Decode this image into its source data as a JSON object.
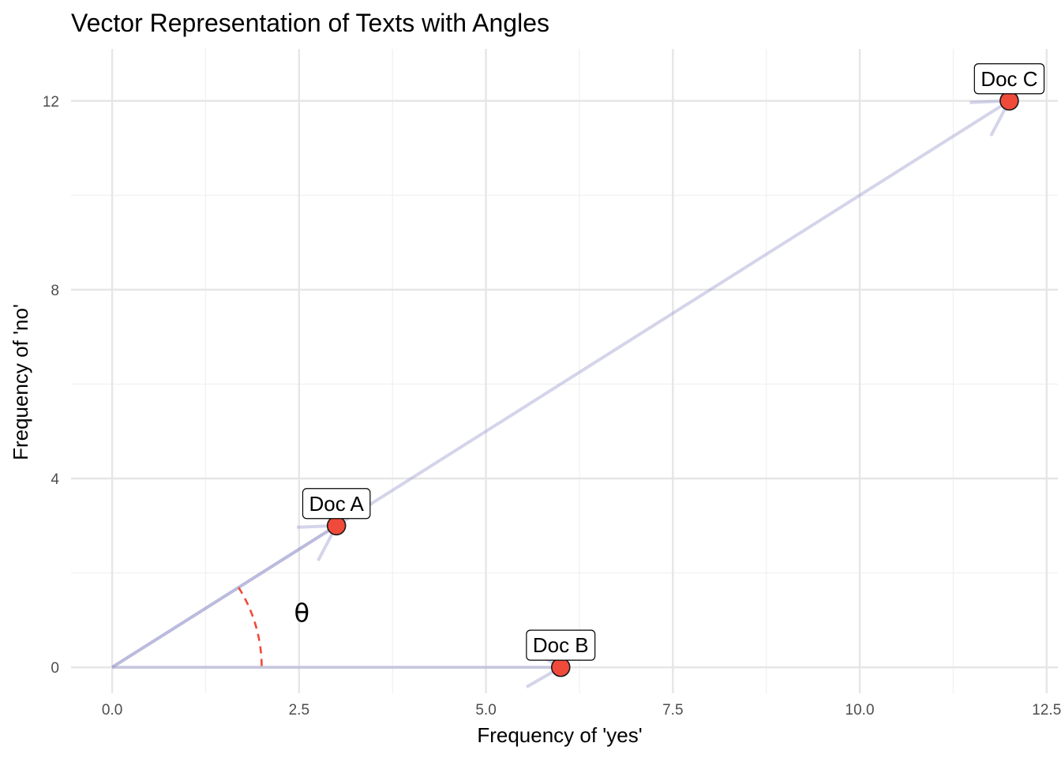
{
  "chart_data": {
    "type": "scatter",
    "title": "Vector Representation of Texts with Angles",
    "xlabel": "Frequency of 'yes'",
    "ylabel": "Frequency of 'no'",
    "xlim": [
      -0.55,
      12.65
    ],
    "ylim": [
      -0.55,
      13.1
    ],
    "x_ticks": [
      0,
      2.5,
      5,
      7.5,
      10,
      12.5
    ],
    "x_tick_labels": [
      "0.0",
      "2.5",
      "5.0",
      "7.5",
      "10.0",
      "12.5"
    ],
    "y_ticks": [
      0,
      4,
      8,
      12
    ],
    "y_tick_labels": [
      "0",
      "4",
      "8",
      "12"
    ],
    "grid": true,
    "points": [
      {
        "label": "Doc A",
        "x": 3,
        "y": 3
      },
      {
        "label": "Doc B",
        "x": 6,
        "y": 0
      },
      {
        "label": "Doc C",
        "x": 12,
        "y": 12
      }
    ],
    "angle_annotation": {
      "symbol": "θ",
      "between": [
        "Doc A",
        "Doc B"
      ]
    },
    "colors": {
      "point_fill": "#f04a3a",
      "point_stroke": "#1a1a1a",
      "vector": "#9999cc",
      "angle_arc": "#f04a3a",
      "grid_major": "#e6e6e6",
      "grid_minor": "#f0f0f0"
    }
  }
}
